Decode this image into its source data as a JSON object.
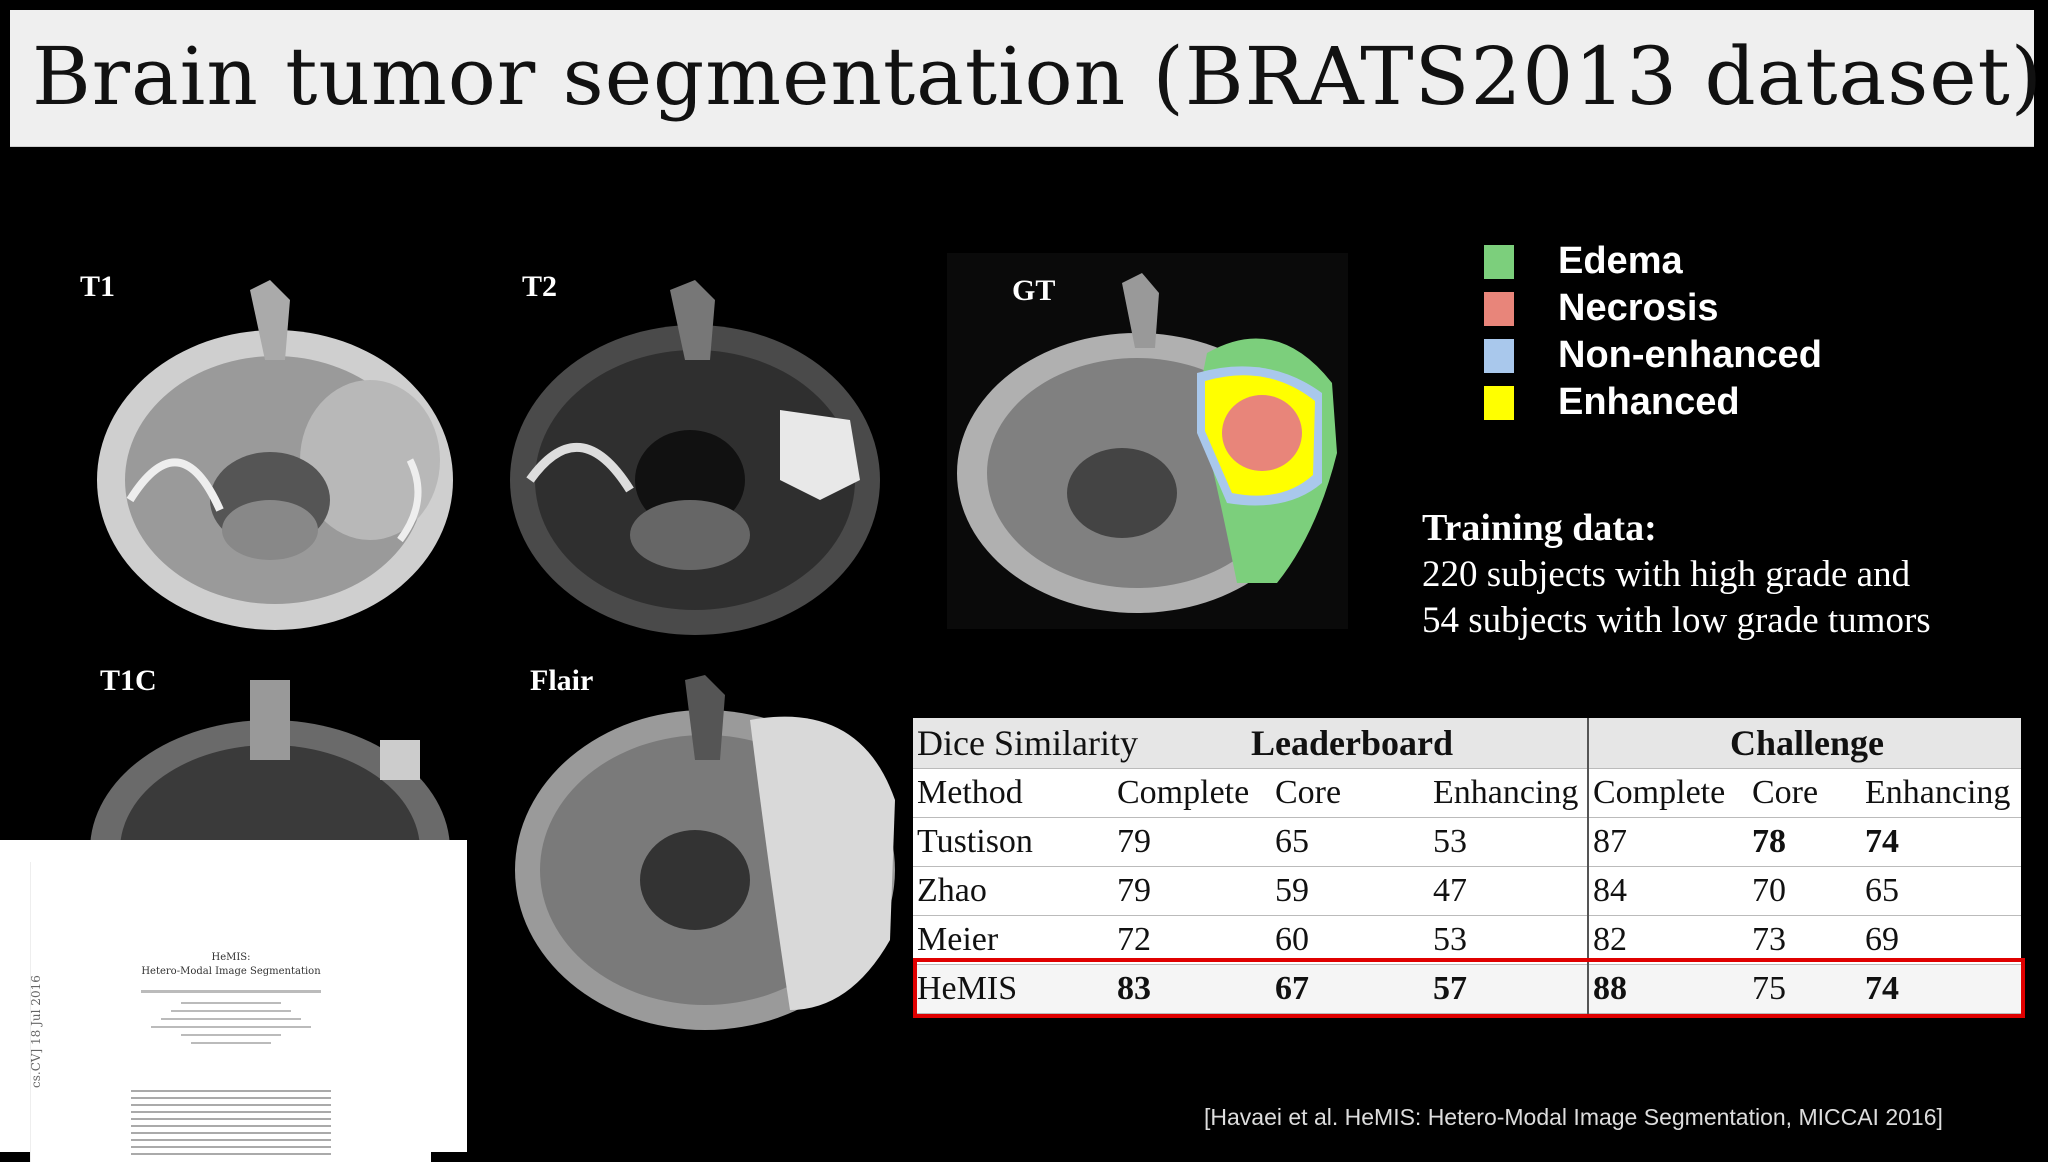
{
  "slide": {
    "title": "Brain tumor segmentation (BRATS2013 dataset)",
    "citation": "[Havaei et al. HeMIS: Hetero-Modal Image Segmentation, MICCAI 2016]"
  },
  "scans": {
    "t1": "T1",
    "t2": "T2",
    "gt": "GT",
    "t1c": "T1C",
    "flair": "Flair"
  },
  "legend": [
    {
      "label": "Edema",
      "color": "#7ccf7c"
    },
    {
      "label": "Necrosis",
      "color": "#e8857a"
    },
    {
      "label": "Non-enhanced",
      "color": "#a9c8ec"
    },
    {
      "label": "Enhanced",
      "color": "#ffff00"
    }
  ],
  "training": {
    "heading": "Training data:",
    "line1": "220 subjects with high grade and",
    "line2": "54 subjects with low grade tumors"
  },
  "paper": {
    "title": "HeMIS:",
    "subtitle": "Hetero-Modal Image Segmentation",
    "arxiv": "cs.CV]  18 Jul 2016"
  },
  "table": {
    "corner": "Dice Similarity",
    "group1": "Leaderboard",
    "group2": "Challenge",
    "columns": [
      "Method",
      "Complete",
      "Core",
      "Enhancing",
      "Complete",
      "Core",
      "Enhancing"
    ],
    "rows": [
      {
        "method": "Tustison",
        "v": [
          "79",
          "65",
          "53",
          "87",
          "78",
          "74"
        ]
      },
      {
        "method": "Zhao",
        "v": [
          "79",
          "59",
          "47",
          "84",
          "70",
          "65"
        ]
      },
      {
        "method": "Meier",
        "v": [
          "72",
          "60",
          "53",
          "82",
          "73",
          "69"
        ]
      },
      {
        "method": "HeMIS",
        "v": [
          "83",
          "67",
          "57",
          "88",
          "75",
          "74"
        ]
      }
    ]
  }
}
